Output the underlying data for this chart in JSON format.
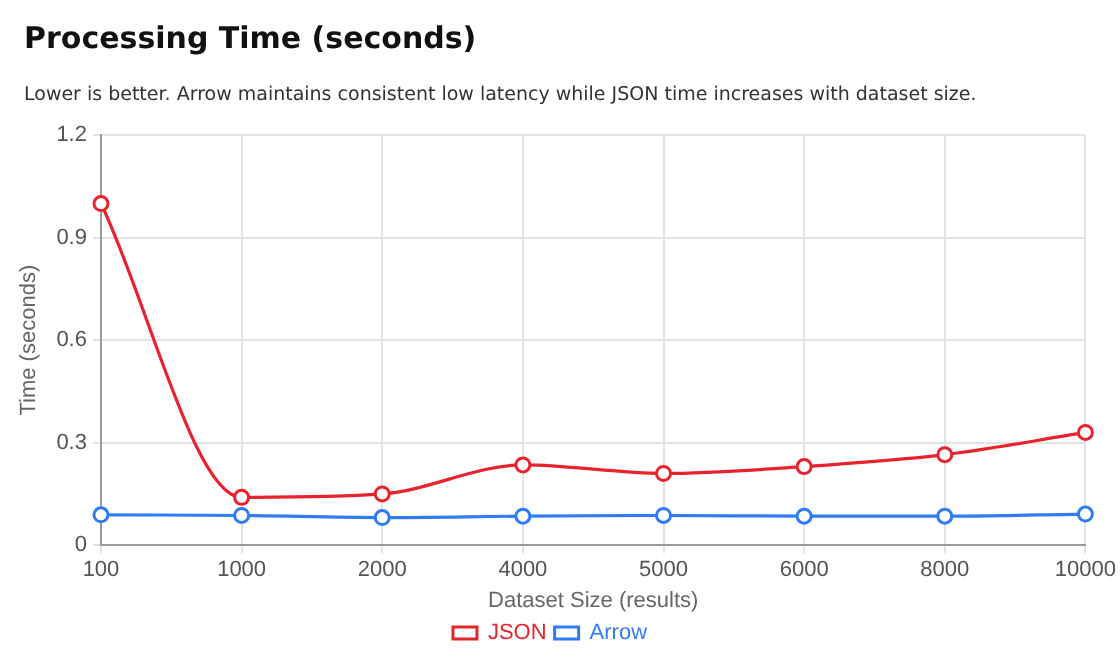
{
  "chart_data": {
    "type": "line",
    "title": "Processing Time (seconds)",
    "subtitle": "Lower is better. Arrow maintains consistent low latency while JSON time increases with dataset size.",
    "xlabel": "Dataset Size (results)",
    "ylabel": "Time (seconds)",
    "categories": [
      "100",
      "1000",
      "2000",
      "4000",
      "5000",
      "6000",
      "8000",
      "10000"
    ],
    "series": [
      {
        "name": "JSON",
        "color": "#e8232d",
        "values": [
          1.0,
          0.14,
          0.15,
          0.235,
          0.21,
          0.23,
          0.265,
          0.33
        ]
      },
      {
        "name": "Arrow",
        "color": "#2f7cf6",
        "values": [
          0.089,
          0.087,
          0.081,
          0.085,
          0.087,
          0.085,
          0.085,
          0.091
        ]
      }
    ],
    "ylim": [
      0,
      1.2
    ],
    "yticks": [
      0,
      0.3,
      0.6,
      0.9,
      1.2
    ],
    "grid": true,
    "legend": "bottom",
    "marker": "circle",
    "line_style": "solid"
  }
}
